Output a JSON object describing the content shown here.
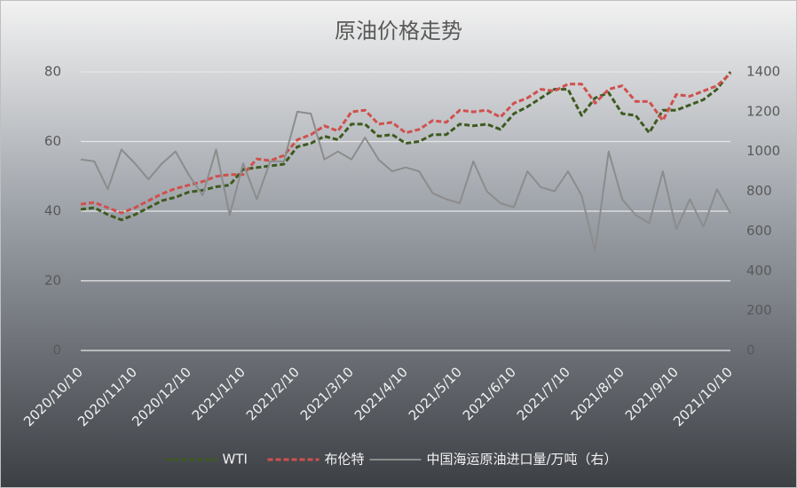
{
  "chart_data": {
    "type": "line",
    "title": "原油价格走势",
    "categories": [
      "2020/10/10",
      null,
      null,
      null,
      "2020/11/10",
      null,
      null,
      null,
      "2020/12/10",
      null,
      null,
      null,
      "2021/1/10",
      null,
      null,
      null,
      "2021/2/10",
      null,
      null,
      null,
      "2021/3/10",
      null,
      null,
      null,
      "2021/4/10",
      null,
      null,
      null,
      "2021/5/10",
      null,
      null,
      null,
      "2021/6/10",
      null,
      null,
      null,
      "2021/7/10",
      null,
      null,
      null,
      "2021/8/10",
      null,
      null,
      null,
      "2021/9/10",
      null,
      null,
      null,
      "2021/10/10"
    ],
    "series": [
      {
        "name": "WTI",
        "color": "#3e5a1f",
        "dashed": true,
        "axis": "y",
        "values": [
          40.5,
          41,
          39,
          37.5,
          39,
          41,
          43,
          44,
          45.5,
          46,
          47,
          47.5,
          52,
          52.5,
          53,
          53.5,
          58.5,
          59.5,
          61.5,
          60.5,
          65,
          65,
          61.5,
          62,
          59.5,
          60,
          62,
          62,
          65,
          64.5,
          65,
          63.5,
          68,
          70,
          72.5,
          75,
          75,
          67.5,
          72.5,
          74,
          68,
          67.5,
          62.5,
          69,
          69,
          70.5,
          72,
          75,
          80
        ]
      },
      {
        "name": "布伦特",
        "color": "#d0504d",
        "dashed": true,
        "axis": "y",
        "values": [
          42,
          42.5,
          41,
          39.5,
          41,
          43,
          45,
          46.5,
          47.5,
          48.5,
          50,
          50.5,
          50.5,
          55,
          54.5,
          56,
          60.5,
          62,
          64.5,
          63,
          68.5,
          69,
          65,
          65.5,
          62.5,
          63.5,
          66,
          65.5,
          69,
          68.5,
          69,
          67,
          71,
          72.5,
          75,
          74.5,
          76.5,
          76.5,
          71,
          75,
          76,
          71.5,
          71.5,
          66,
          73.5,
          73,
          74.5,
          76,
          79.5
        ]
      },
      {
        "name": "中国海运原油进口量/万吨（右）",
        "color": "#8c8c8c",
        "dashed": false,
        "axis": "y2",
        "values": [
          960,
          950,
          810,
          1010,
          940,
          860,
          940,
          1000,
          880,
          780,
          1010,
          680,
          940,
          760,
          950,
          950,
          1200,
          1190,
          960,
          1000,
          960,
          1070,
          960,
          900,
          920,
          900,
          790,
          760,
          740,
          950,
          800,
          740,
          720,
          900,
          820,
          800,
          900,
          780,
          500,
          1000,
          760,
          680,
          640,
          900,
          610,
          760,
          620,
          810,
          690
        ]
      }
    ],
    "ylim": [
      0,
      80
    ],
    "yticks": [
      0,
      20,
      40,
      60,
      80
    ],
    "y2lim": [
      0,
      1400
    ],
    "y2ticks": [
      0,
      200,
      400,
      600,
      800,
      1000,
      1200,
      1400
    ],
    "grid": true,
    "legend": "bottom"
  }
}
